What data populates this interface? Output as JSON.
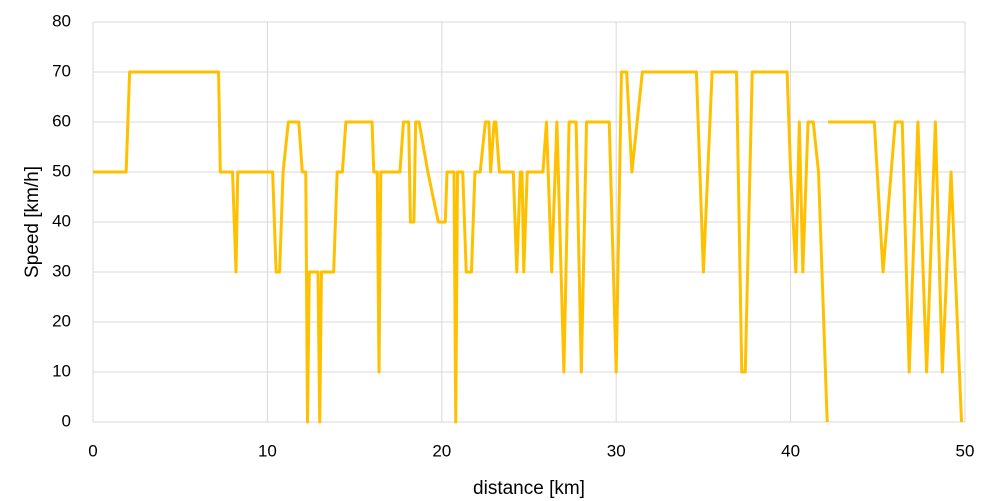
{
  "chart_data": {
    "type": "line",
    "xlabel": "distance [km]",
    "ylabel": "Speed  [km/h]",
    "x": [
      0,
      1.9,
      2.1,
      7.2,
      7.3,
      8.0,
      8.2,
      8.3,
      10.3,
      10.5,
      10.7,
      10.9,
      11.2,
      11.8,
      12.0,
      12.2,
      12.3,
      12.4,
      12.9,
      13.0,
      13.1,
      13.8,
      14.0,
      14.3,
      14.5,
      16.0,
      16.1,
      16.3,
      16.4,
      16.5,
      17.6,
      17.8,
      18.1,
      18.2,
      18.4,
      18.5,
      18.7,
      19.2,
      19.8,
      20.2,
      20.3,
      20.7,
      20.8,
      20.9,
      21.2,
      21.4,
      21.7,
      21.9,
      22.2,
      22.5,
      22.7,
      22.8,
      23.0,
      23.1,
      23.3,
      24.1,
      24.3,
      24.5,
      24.6,
      24.7,
      24.9,
      25.8,
      26.0,
      26.3,
      26.6,
      27.0,
      27.3,
      27.7,
      28.0,
      28.3,
      29.6,
      30.0,
      30.3,
      30.6,
      30.9,
      31.5,
      34.6,
      35.0,
      35.5,
      36.9,
      37.2,
      37.4,
      37.8,
      39.8,
      40.0,
      40.3,
      40.5,
      40.7,
      41.0,
      41.3,
      41.6,
      42.1,
      42.12,
      42.15,
      44.8,
      45.3,
      46.0,
      46.4,
      46.8,
      47.3,
      47.8,
      48.3,
      48.7,
      49.2,
      49.8
    ],
    "series": [
      {
        "name": "Speed",
        "color": "#ffc000",
        "values": [
          50,
          50,
          70,
          70,
          50,
          50,
          30,
          50,
          50,
          30,
          30,
          50,
          60,
          60,
          50,
          50,
          0,
          30,
          30,
          0,
          30,
          30,
          50,
          50,
          60,
          60,
          50,
          50,
          10,
          50,
          50,
          60,
          60,
          40,
          40,
          60,
          60,
          50,
          40,
          40,
          50,
          50,
          0,
          50,
          50,
          30,
          30,
          50,
          50,
          60,
          60,
          50,
          60,
          60,
          50,
          50,
          30,
          50,
          50,
          30,
          50,
          50,
          60,
          30,
          60,
          10,
          60,
          60,
          10,
          60,
          60,
          10,
          70,
          70,
          50,
          70,
          70,
          30,
          70,
          70,
          10,
          10,
          70,
          70,
          50,
          30,
          60,
          30,
          60,
          60,
          50,
          0,
          null,
          60,
          60,
          30,
          60,
          60,
          10,
          60,
          10,
          60,
          10,
          50,
          0
        ]
      }
    ],
    "xlim": [
      0,
      50
    ],
    "xticks": [
      0,
      10,
      20,
      30,
      40,
      50
    ],
    "ylim": [
      0,
      80
    ],
    "yticks": [
      0,
      10,
      20,
      30,
      40,
      50,
      60,
      70,
      80
    ],
    "grid": true
  }
}
